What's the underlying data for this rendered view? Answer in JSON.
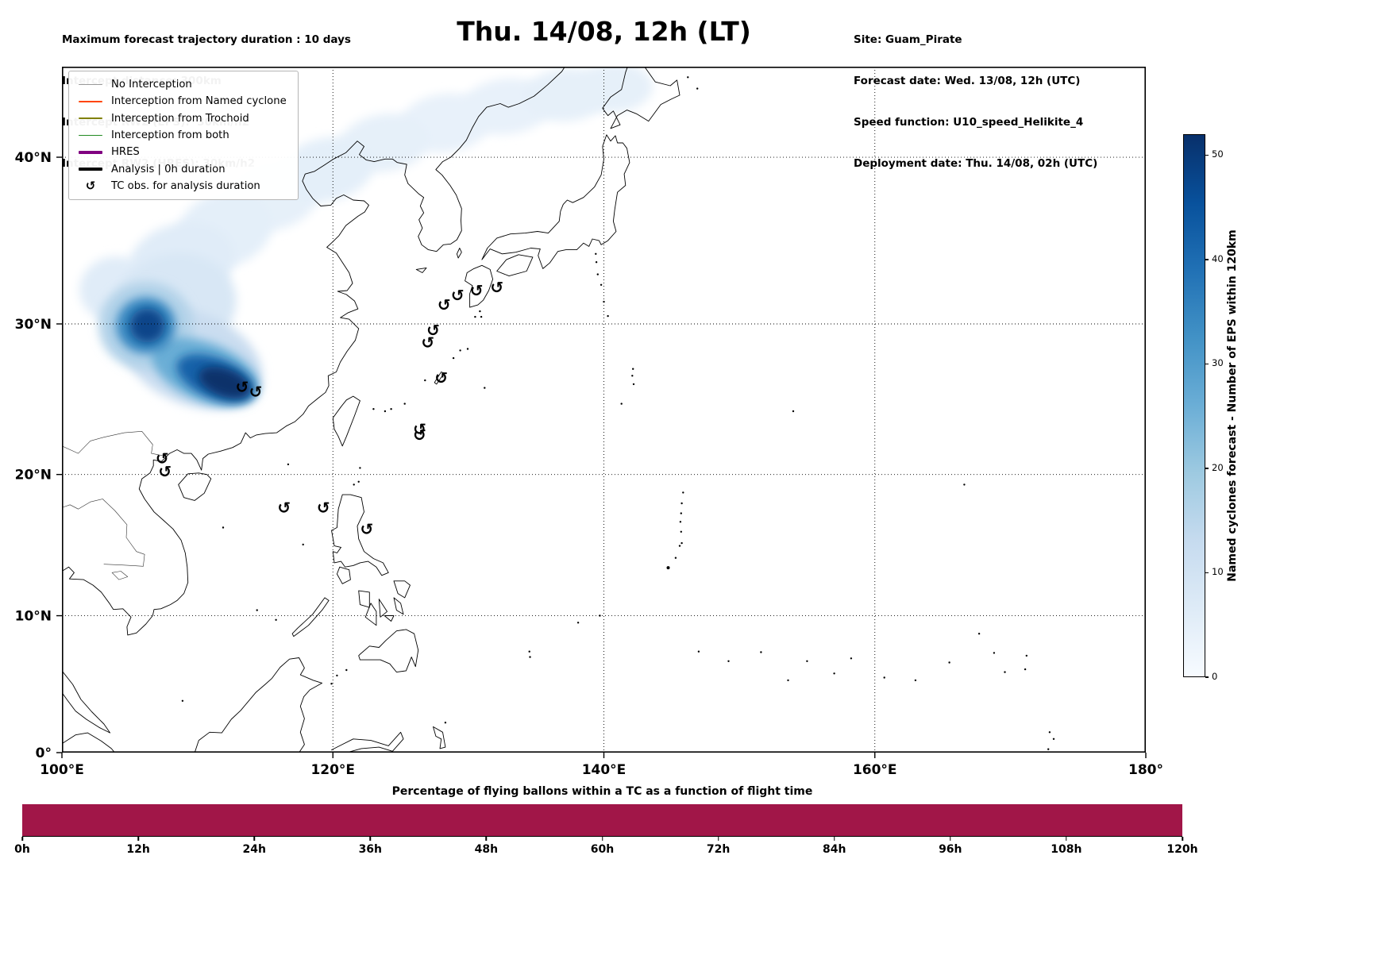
{
  "header": {
    "left_lines": [
      "Maximum forecast trajectory duration : 10 days",
      "Intercept distance: 300km",
      "Intercept RW2 (EPS):  30km/h2",
      "Intercept RW2 (HRES): 30km/h2"
    ],
    "title": "Thu. 14/08, 12h (LT)",
    "right_lines": [
      "Site: Guam_Pirate",
      "Forecast date: Wed. 13/08, 12h (UTC)",
      "Speed function: U10_speed_Helikite_4",
      "Deployment date: Thu. 14/08, 02h (UTC)"
    ]
  },
  "legend": {
    "items": [
      {
        "type": "line",
        "label": "No Interception",
        "color": "#999999",
        "thick": false
      },
      {
        "type": "line",
        "label": "Interception from Named cyclone",
        "color": "#ff4500",
        "thick": false
      },
      {
        "type": "line",
        "label": "Interception from Trochoid",
        "color": "#808000",
        "thick": false
      },
      {
        "type": "line",
        "label": "Interception from both",
        "color": "#228b22",
        "thick": false
      },
      {
        "type": "line",
        "label": "HRES",
        "color": "#800080",
        "thick": true
      },
      {
        "type": "line",
        "label": "Analysis | 0h duration",
        "color": "#000000",
        "thick": true
      },
      {
        "type": "symbol",
        "label": "TC obs. for analysis duration",
        "symbol": "↺"
      }
    ]
  },
  "map": {
    "lon_range": [
      100,
      180
    ],
    "lat_top": 44.9,
    "x_ticks": [
      {
        "value": 100,
        "label": "100°E"
      },
      {
        "value": 120,
        "label": "120°E"
      },
      {
        "value": 140,
        "label": "140°E"
      },
      {
        "value": 160,
        "label": "160°E"
      },
      {
        "value": 180,
        "label": "180°"
      }
    ],
    "y_ticks": [
      {
        "value": 0,
        "label": "0°"
      },
      {
        "value": 10,
        "label": "10°N"
      },
      {
        "value": 20,
        "label": "20°N"
      },
      {
        "value": 30,
        "label": "30°N"
      },
      {
        "value": 40,
        "label": "40°N"
      }
    ],
    "tc_symbol": "↺",
    "tc_obs": [
      [
        128.2,
        31.2
      ],
      [
        129.2,
        31.8
      ],
      [
        130.6,
        32.1
      ],
      [
        132.1,
        32.3
      ],
      [
        127.4,
        29.6
      ],
      [
        127.0,
        28.8
      ],
      [
        128.0,
        26.5
      ],
      [
        126.4,
        23.1
      ],
      [
        126.4,
        22.7
      ],
      [
        113.3,
        25.9
      ],
      [
        114.3,
        25.6
      ],
      [
        107.4,
        21.1
      ],
      [
        107.6,
        20.2
      ],
      [
        116.4,
        17.7
      ],
      [
        119.3,
        17.7
      ],
      [
        122.5,
        16.2
      ]
    ],
    "density_blobs": [
      {
        "lon": 103.9,
        "lat": 32.2,
        "rx": 2.6,
        "ry": 2.0,
        "rot": -10,
        "value": 6
      },
      {
        "lon": 106.2,
        "lat": 29.9,
        "rx": 3.5,
        "ry": 2.8,
        "rot": 0,
        "value": 16
      },
      {
        "lon": 106.2,
        "lat": 29.9,
        "rx": 2.2,
        "ry": 1.8,
        "rot": 0,
        "value": 34
      },
      {
        "lon": 106.3,
        "lat": 29.9,
        "rx": 1.3,
        "ry": 1.1,
        "rot": 0,
        "value": 48
      },
      {
        "lon": 109.6,
        "lat": 27.8,
        "rx": 5.4,
        "ry": 3.0,
        "rot": 22,
        "value": 12
      },
      {
        "lon": 110.6,
        "lat": 26.9,
        "rx": 4.2,
        "ry": 1.9,
        "rot": 22,
        "value": 26
      },
      {
        "lon": 111.3,
        "lat": 26.5,
        "rx": 3.0,
        "ry": 1.3,
        "rot": 22,
        "value": 42
      },
      {
        "lon": 112.0,
        "lat": 26.2,
        "rx": 2.0,
        "ry": 0.9,
        "rot": 20,
        "value": 52
      },
      {
        "lon": 108.3,
        "lat": 31.2,
        "rx": 4.6,
        "ry": 3.2,
        "rot": -12,
        "value": 8
      },
      {
        "lon": 108.8,
        "lat": 33.8,
        "rx": 4.0,
        "ry": 2.4,
        "rot": -15,
        "value": 6
      },
      {
        "lon": 112.0,
        "lat": 35.8,
        "rx": 3.6,
        "ry": 2.2,
        "rot": -18,
        "value": 5
      },
      {
        "lon": 115.5,
        "lat": 37.8,
        "rx": 3.6,
        "ry": 2.0,
        "rot": -15,
        "value": 4.5
      },
      {
        "lon": 119.5,
        "lat": 39.3,
        "rx": 3.6,
        "ry": 1.8,
        "rot": -12,
        "value": 5
      },
      {
        "lon": 123.8,
        "lat": 40.8,
        "rx": 3.4,
        "ry": 1.6,
        "rot": -9,
        "value": 4.5
      },
      {
        "lon": 128.3,
        "lat": 41.9,
        "rx": 3.4,
        "ry": 1.6,
        "rot": -7,
        "value": 4
      },
      {
        "lon": 132.8,
        "lat": 42.8,
        "rx": 3.4,
        "ry": 1.5,
        "rot": -6,
        "value": 4
      },
      {
        "lon": 137.2,
        "lat": 43.4,
        "rx": 3.2,
        "ry": 1.4,
        "rot": -4,
        "value": 4.5
      },
      {
        "lon": 140.8,
        "lat": 43.8,
        "rx": 2.8,
        "ry": 1.3,
        "rot": -3,
        "value": 4.5
      }
    ]
  },
  "colorbar": {
    "label": "Named cyclones forecast - Number of EPS within 120km",
    "ticks": [
      0,
      10,
      20,
      30,
      40,
      50
    ],
    "vmin": 0,
    "vmax": 52,
    "colormap": "Blues"
  },
  "bottom_chart": {
    "title": "Percentage of flying ballons within a TC as a function of flight time",
    "tick_labels": [
      "0h",
      "12h",
      "24h",
      "36h",
      "48h",
      "60h",
      "72h",
      "84h",
      "96h",
      "108h",
      "120h"
    ],
    "bar_color": "#a11648",
    "x_range_hours": [
      0,
      120
    ],
    "value_percent": 100
  },
  "chart_data": [
    {
      "type": "heatmap",
      "title": "Thu. 14/08, 12h (LT)",
      "x_tick_labels": [
        "100°E",
        "120°E",
        "140°E",
        "160°E",
        "180°"
      ],
      "y_tick_labels": [
        "0°",
        "10°N",
        "20°N",
        "30°N",
        "40°N"
      ],
      "x_range_lon": [
        100,
        180
      ],
      "y_range_lat": [
        0,
        45
      ],
      "grid": true,
      "colorbar_label": "Named cyclones forecast - Number of EPS within 120km",
      "colorbar_ticks": [
        0,
        10,
        20,
        30,
        40,
        50
      ],
      "value_range": [
        0,
        52
      ],
      "density_peaks": [
        {
          "lon": 106.3,
          "lat": 29.9,
          "value": 48
        },
        {
          "lon": 112.0,
          "lat": 26.2,
          "value": 52
        }
      ],
      "density_plume": "light density band extends northeast from ~108°E,31°N across the Yellow Sea and Korea to ~143°E,44°N",
      "tc_obs_lon_lat": [
        [
          128.2,
          31.2
        ],
        [
          129.2,
          31.8
        ],
        [
          130.6,
          32.1
        ],
        [
          132.1,
          32.3
        ],
        [
          127.4,
          29.6
        ],
        [
          127.0,
          28.8
        ],
        [
          128.0,
          26.5
        ],
        [
          126.4,
          23.1
        ],
        [
          126.4,
          22.7
        ],
        [
          113.3,
          25.9
        ],
        [
          114.3,
          25.6
        ],
        [
          107.4,
          21.1
        ],
        [
          107.6,
          20.2
        ],
        [
          116.4,
          17.7
        ],
        [
          119.3,
          17.7
        ],
        [
          122.5,
          16.2
        ]
      ]
    },
    {
      "type": "bar",
      "title": "Percentage of flying ballons within a TC as a function of flight time",
      "x_hours": [
        0,
        12,
        24,
        36,
        48,
        60,
        72,
        84,
        96,
        108,
        120
      ],
      "values_percent": [
        100,
        100,
        100,
        100,
        100,
        100,
        100,
        100,
        100,
        100,
        100
      ],
      "x_tick_labels": [
        "0h",
        "12h",
        "24h",
        "36h",
        "48h",
        "60h",
        "72h",
        "84h",
        "96h",
        "108h",
        "120h"
      ],
      "bar_color": "#a11648"
    }
  ]
}
